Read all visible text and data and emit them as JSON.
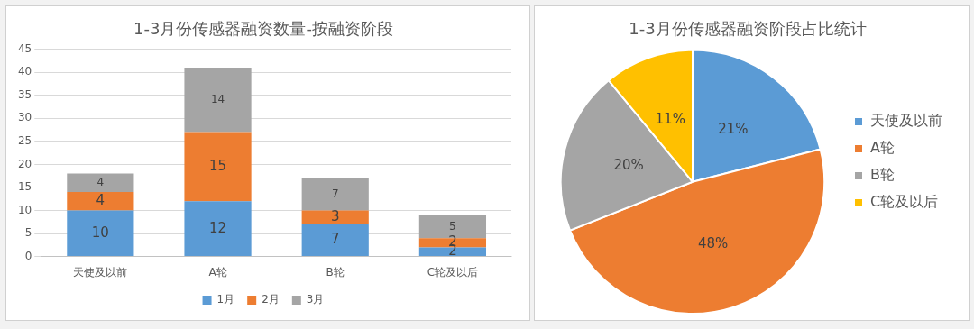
{
  "chart_data": [
    {
      "type": "bar",
      "title": "1-3月份传感器融资数量-按融资阶段",
      "categories": [
        "天使及以前",
        "A轮",
        "B轮",
        "C轮及以后"
      ],
      "stacked": true,
      "series": [
        {
          "name": "1月",
          "color": "#5b9bd5",
          "values": [
            10,
            12,
            7,
            2
          ]
        },
        {
          "name": "2月",
          "color": "#ed7d31",
          "values": [
            4,
            15,
            3,
            2
          ]
        },
        {
          "name": "3月",
          "color": "#a5a5a5",
          "values": [
            4,
            14,
            7,
            5
          ]
        }
      ],
      "ylim": [
        0,
        45
      ],
      "yticks": [
        0,
        5,
        10,
        15,
        20,
        25,
        30,
        35,
        40,
        45
      ],
      "grid": "y",
      "legend": "bottom",
      "data_labels": true
    },
    {
      "type": "pie",
      "title": "1-3月份传感器融资阶段占比统计",
      "categories": [
        "天使及以前",
        "A轮",
        "B轮",
        "C轮及以后"
      ],
      "values": [
        21,
        48,
        20,
        11
      ],
      "colors": [
        "#5b9bd5",
        "#ed7d31",
        "#a5a5a5",
        "#ffc000"
      ],
      "value_labels": [
        "21%",
        "48%",
        "20%",
        "11%"
      ],
      "legend": "right"
    }
  ]
}
